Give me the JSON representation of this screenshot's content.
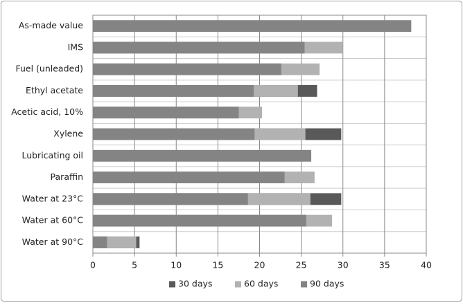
{
  "chart_data": {
    "type": "bar",
    "orientation": "horizontal",
    "overlap": true,
    "categories": [
      "As-made value",
      "IMS",
      "Fuel (unleaded)",
      "Ethyl acetate",
      "Acetic acid, 10%",
      "Xylene",
      "Lubricating oil",
      "Paraffin",
      "Water at 23°C",
      "Water at 60°C",
      "Water at 90°C"
    ],
    "series": [
      {
        "name": "30 days",
        "color": "#595959",
        "values": [
          null,
          null,
          null,
          26.9,
          null,
          29.8,
          null,
          null,
          29.8,
          null,
          5.6
        ]
      },
      {
        "name": "60 days",
        "color": "#b2b2b2",
        "values": [
          null,
          30.0,
          27.2,
          24.6,
          20.3,
          25.5,
          null,
          26.6,
          26.1,
          28.7,
          5.2
        ]
      },
      {
        "name": "90 days",
        "color": "#848484",
        "values": [
          38.2,
          25.4,
          22.6,
          19.3,
          17.5,
          19.4,
          26.2,
          23.0,
          18.6,
          25.6,
          1.7
        ]
      }
    ],
    "xlim": [
      0,
      40
    ],
    "xticks": [
      0,
      5,
      10,
      15,
      20,
      25,
      30,
      35,
      40
    ],
    "grid": true,
    "legend": "bottom"
  }
}
